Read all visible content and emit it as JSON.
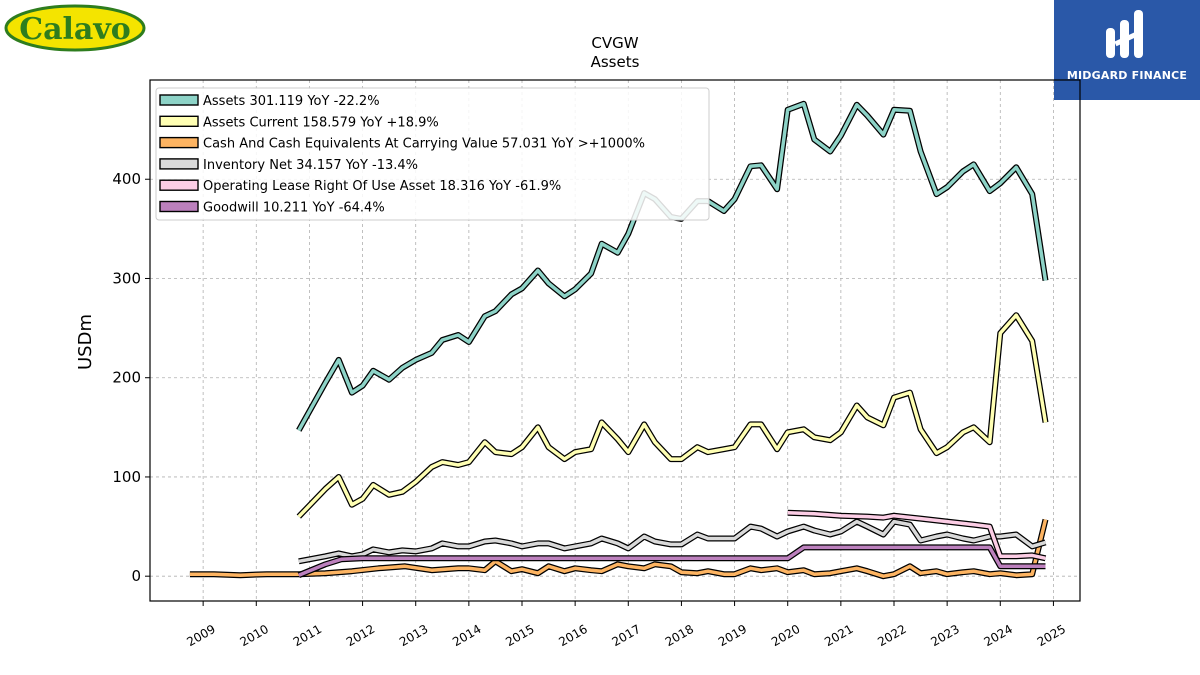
{
  "branding": {
    "left_logo_text": "Calavo",
    "right_logo_text": "MIDGARD FINANCE"
  },
  "chart_data": {
    "type": "line",
    "title": "CVGW",
    "subtitle": "Assets",
    "xlabel": "",
    "ylabel": "USDm",
    "xlim": [
      2008,
      2025.5
    ],
    "ylim": [
      -25,
      500
    ],
    "yticks": [
      0,
      100,
      200,
      300,
      400
    ],
    "xticks": [
      "2009",
      "2010",
      "2011",
      "2012",
      "2013",
      "2014",
      "2015",
      "2016",
      "2017",
      "2018",
      "2019",
      "2020",
      "2021",
      "2022",
      "2023",
      "2024",
      "2025"
    ],
    "grid": true,
    "legend_position": "top-left",
    "series": [
      {
        "name": "Assets",
        "legend": "Assets  301.119 YoY -22.2%",
        "color": "#8dd3c7",
        "x": [
          2010.8,
          2011.3,
          2011.55,
          2011.8,
          2012.0,
          2012.2,
          2012.5,
          2012.75,
          2013.0,
          2013.3,
          2013.5,
          2013.8,
          2014.0,
          2014.3,
          2014.5,
          2014.8,
          2015.0,
          2015.3,
          2015.5,
          2015.8,
          2016.0,
          2016.3,
          2016.5,
          2016.8,
          2017.0,
          2017.3,
          2017.5,
          2017.8,
          2018.0,
          2018.3,
          2018.5,
          2018.8,
          2019.0,
          2019.3,
          2019.5,
          2019.8,
          2020.0,
          2020.3,
          2020.5,
          2020.8,
          2021.0,
          2021.3,
          2021.5,
          2021.8,
          2022.0,
          2022.3,
          2022.5,
          2022.8,
          2023.0,
          2023.3,
          2023.5,
          2023.8,
          2024.0,
          2024.3,
          2024.6,
          2024.85
        ],
        "y": [
          147,
          195,
          218,
          185,
          192,
          207,
          198,
          210,
          218,
          225,
          238,
          243,
          236,
          262,
          267,
          284,
          290,
          308,
          295,
          282,
          289,
          305,
          335,
          326,
          345,
          386,
          380,
          362,
          360,
          378,
          378,
          368,
          380,
          413,
          414,
          390,
          470,
          476,
          440,
          428,
          444,
          475,
          464,
          445,
          470,
          469,
          428,
          385,
          392,
          408,
          415,
          388,
          396,
          412,
          385,
          298
        ]
      },
      {
        "name": "Assets Current",
        "legend": "Assets Current  158.579 YoY +18.9%",
        "color": "#ffffb3",
        "x": [
          2010.8,
          2011.3,
          2011.55,
          2011.8,
          2012.0,
          2012.2,
          2012.5,
          2012.75,
          2013.0,
          2013.3,
          2013.5,
          2013.8,
          2014.0,
          2014.3,
          2014.5,
          2014.8,
          2015.0,
          2015.3,
          2015.5,
          2015.8,
          2016.0,
          2016.3,
          2016.5,
          2016.8,
          2017.0,
          2017.3,
          2017.5,
          2017.8,
          2018.0,
          2018.3,
          2018.5,
          2018.8,
          2019.0,
          2019.3,
          2019.5,
          2019.8,
          2020.0,
          2020.3,
          2020.5,
          2020.8,
          2021.0,
          2021.3,
          2021.5,
          2021.8,
          2022.0,
          2022.3,
          2022.5,
          2022.8,
          2023.0,
          2023.3,
          2023.5,
          2023.8,
          2024.0,
          2024.3,
          2024.6,
          2024.85
        ],
        "y": [
          60,
          88,
          100,
          72,
          78,
          92,
          82,
          85,
          95,
          110,
          115,
          112,
          115,
          135,
          125,
          123,
          130,
          150,
          130,
          118,
          125,
          128,
          155,
          138,
          125,
          153,
          135,
          118,
          118,
          130,
          125,
          128,
          130,
          153,
          153,
          128,
          145,
          148,
          140,
          137,
          145,
          172,
          160,
          152,
          180,
          185,
          148,
          124,
          130,
          145,
          150,
          135,
          245,
          263,
          237,
          155
        ]
      },
      {
        "name": "Cash And Cash Equivalents At Carrying Value",
        "legend": "Cash And Cash Equivalents At Carrying Value  57.031 YoY >+1000%",
        "color": "#fdb462",
        "x": [
          2008.75,
          2009.2,
          2009.7,
          2010.2,
          2010.8,
          2011.3,
          2011.8,
          2012.3,
          2012.8,
          2013.3,
          2013.8,
          2014.0,
          2014.3,
          2014.5,
          2014.8,
          2015.0,
          2015.3,
          2015.5,
          2015.8,
          2016.0,
          2016.3,
          2016.5,
          2016.8,
          2017.0,
          2017.3,
          2017.5,
          2017.8,
          2018.0,
          2018.3,
          2018.5,
          2018.8,
          2019.0,
          2019.3,
          2019.5,
          2019.8,
          2020.0,
          2020.3,
          2020.5,
          2020.8,
          2021.0,
          2021.3,
          2021.5,
          2021.8,
          2022.0,
          2022.3,
          2022.5,
          2022.8,
          2023.0,
          2023.3,
          2023.5,
          2023.8,
          2024.0,
          2024.3,
          2024.6,
          2024.85
        ],
        "y": [
          2,
          2,
          1,
          2,
          2,
          3,
          5,
          8,
          10,
          6,
          8,
          8,
          6,
          15,
          5,
          7,
          3,
          10,
          5,
          8,
          6,
          5,
          12,
          10,
          8,
          12,
          10,
          4,
          3,
          5,
          2,
          2,
          8,
          6,
          8,
          4,
          6,
          2,
          3,
          5,
          8,
          5,
          0,
          2,
          10,
          3,
          5,
          2,
          4,
          5,
          2,
          3,
          1,
          2,
          57
        ]
      },
      {
        "name": "Inventory Net",
        "legend": "Inventory Net  34.157 YoY -13.4%",
        "color": "#d9d9d9",
        "x": [
          2010.8,
          2011.3,
          2011.55,
          2011.8,
          2012.0,
          2012.2,
          2012.5,
          2012.75,
          2013.0,
          2013.3,
          2013.5,
          2013.8,
          2014.0,
          2014.3,
          2014.5,
          2014.8,
          2015.0,
          2015.3,
          2015.5,
          2015.8,
          2016.0,
          2016.3,
          2016.5,
          2016.8,
          2017.0,
          2017.3,
          2017.5,
          2017.8,
          2018.0,
          2018.3,
          2018.5,
          2018.8,
          2019.0,
          2019.3,
          2019.5,
          2019.8,
          2020.0,
          2020.3,
          2020.5,
          2020.8,
          2021.0,
          2021.3,
          2021.5,
          2021.8,
          2022.0,
          2022.3,
          2022.5,
          2022.8,
          2023.0,
          2023.3,
          2023.5,
          2023.8,
          2024.0,
          2024.3,
          2024.6,
          2024.85
        ],
        "y": [
          15,
          20,
          23,
          20,
          22,
          27,
          24,
          26,
          25,
          28,
          33,
          30,
          30,
          35,
          36,
          33,
          30,
          33,
          33,
          28,
          30,
          33,
          38,
          33,
          28,
          40,
          35,
          32,
          32,
          42,
          38,
          38,
          38,
          50,
          48,
          40,
          45,
          50,
          46,
          42,
          45,
          55,
          50,
          42,
          55,
          52,
          36,
          40,
          42,
          38,
          36,
          40,
          40,
          42,
          30,
          34
        ]
      },
      {
        "name": "Operating Lease Right Of Use Asset",
        "legend": "Operating Lease Right Of Use Asset  18.316 YoY -61.9%",
        "color": "#fccde5",
        "x": [
          2020.0,
          2020.5,
          2021.0,
          2021.5,
          2021.8,
          2022.0,
          2022.5,
          2023.0,
          2023.5,
          2023.8,
          2024.0,
          2024.3,
          2024.6,
          2024.85
        ],
        "y": [
          64,
          63,
          61,
          60,
          59,
          61,
          58,
          55,
          52,
          50,
          20,
          20,
          21,
          18
        ]
      },
      {
        "name": "Goodwill",
        "legend": "Goodwill  10.211 YoY -64.4%",
        "color": "#bc80bd",
        "x": [
          2010.8,
          2011.3,
          2011.6,
          2012.0,
          2013.0,
          2014.0,
          2015.0,
          2016.0,
          2017.0,
          2018.0,
          2019.0,
          2019.8,
          2020.0,
          2020.3,
          2021.0,
          2022.0,
          2023.0,
          2023.8,
          2024.0,
          2024.3,
          2024.6,
          2024.85
        ],
        "y": [
          1,
          12,
          17,
          18,
          18,
          18,
          18,
          18,
          18,
          18,
          18,
          18,
          18,
          29,
          29,
          29,
          29,
          29,
          10,
          10,
          10,
          10
        ]
      }
    ]
  }
}
